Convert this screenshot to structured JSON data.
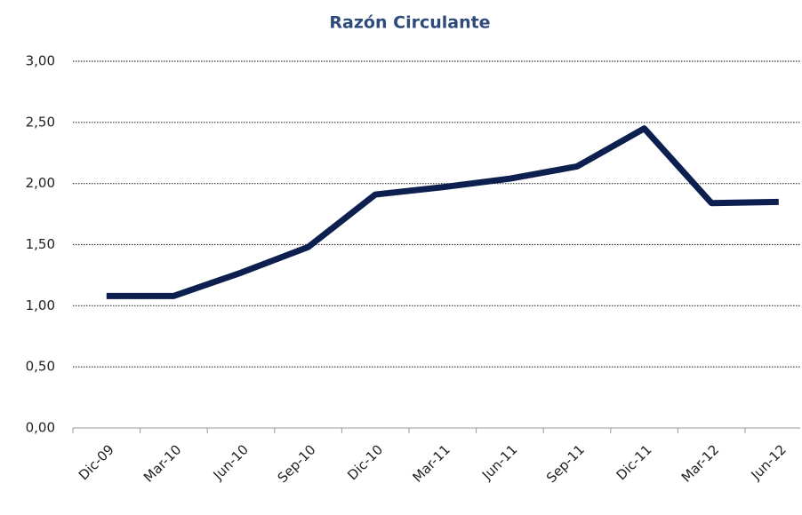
{
  "chart_data": {
    "type": "line",
    "title": "Razón Circulante",
    "categories": [
      "Dic-09",
      "Mar-10",
      "Jun-10",
      "Sep-10",
      "Dic-10",
      "Mar-11",
      "Jun-11",
      "Sep-11",
      "Dic-11",
      "Mar-12",
      "Jun-12"
    ],
    "series": [
      {
        "name": "Razón Circulante",
        "color": "#0c1f4f",
        "values": [
          1.08,
          1.08,
          1.27,
          1.48,
          1.91,
          1.97,
          2.04,
          2.14,
          2.45,
          1.84,
          1.85
        ]
      }
    ],
    "ylim": [
      0,
      3
    ],
    "yticks": [
      {
        "value": 0,
        "label": "0,00"
      },
      {
        "value": 0.5,
        "label": "0,50"
      },
      {
        "value": 1,
        "label": "1,00"
      },
      {
        "value": 1.5,
        "label": "1,50"
      },
      {
        "value": 2,
        "label": "2,00"
      },
      {
        "value": 2.5,
        "label": "2,50"
      },
      {
        "value": 3,
        "label": "3,00"
      }
    ],
    "grid": true
  }
}
